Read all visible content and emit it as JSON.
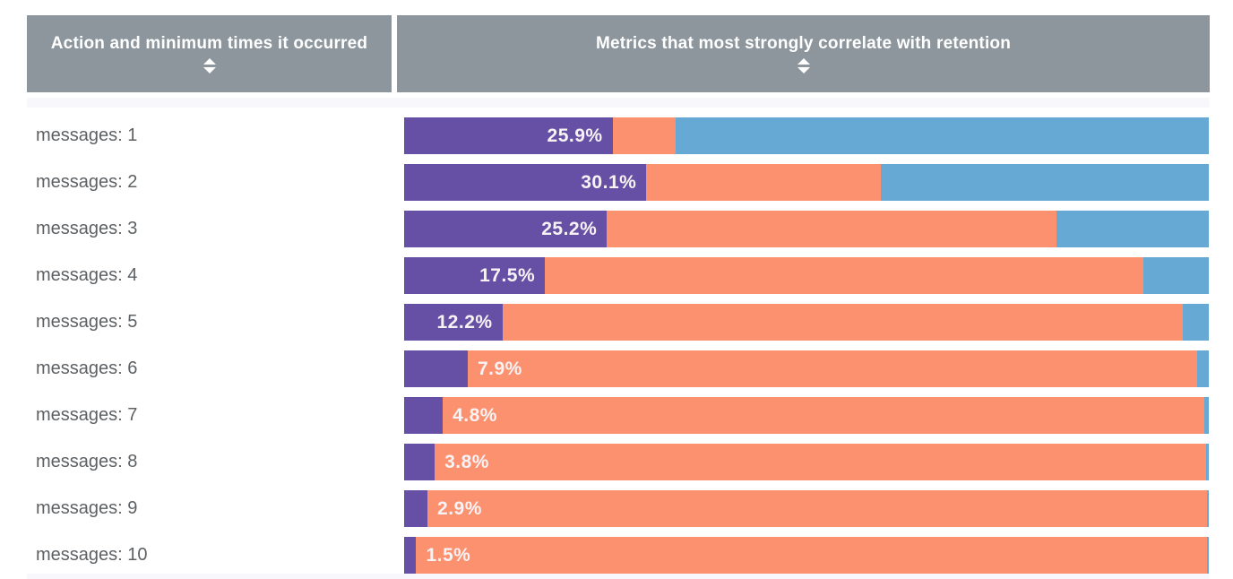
{
  "table": {
    "columns": [
      {
        "label": "Action and minimum times it occurred",
        "sortable": true,
        "sort_icon": "up-down-arrows"
      },
      {
        "label": "Metrics that most strongly correlate with retention",
        "sortable": true,
        "sort_icon": "up-down-arrows"
      }
    ],
    "rows": [
      {
        "action": "messages: 1",
        "value_label": "25.9%",
        "segments": {
          "purple": 25.9,
          "orange": 7.8,
          "blue": 66.3
        }
      },
      {
        "action": "messages: 2",
        "value_label": "30.1%",
        "segments": {
          "purple": 30.1,
          "orange": 29.1,
          "blue": 40.8
        }
      },
      {
        "action": "messages: 3",
        "value_label": "25.2%",
        "segments": {
          "purple": 25.2,
          "orange": 55.9,
          "blue": 18.9
        }
      },
      {
        "action": "messages: 4",
        "value_label": "17.5%",
        "segments": {
          "purple": 17.5,
          "orange": 74.4,
          "blue": 8.1
        }
      },
      {
        "action": "messages: 5",
        "value_label": "12.2%",
        "segments": {
          "purple": 12.2,
          "orange": 84.6,
          "blue": 3.2
        }
      },
      {
        "action": "messages: 6",
        "value_label": "7.9%",
        "segments": {
          "purple": 7.9,
          "orange": 90.6,
          "blue": 1.5
        }
      },
      {
        "action": "messages: 7",
        "value_label": "4.8%",
        "segments": {
          "purple": 4.8,
          "orange": 94.7,
          "blue": 0.5
        }
      },
      {
        "action": "messages: 8",
        "value_label": "3.8%",
        "segments": {
          "purple": 3.8,
          "orange": 95.9,
          "blue": 0.3
        }
      },
      {
        "action": "messages: 9",
        "value_label": "2.9%",
        "segments": {
          "purple": 2.9,
          "orange": 96.9,
          "blue": 0.2
        }
      },
      {
        "action": "messages: 10",
        "value_label": "1.5%",
        "segments": {
          "purple": 1.5,
          "orange": 98.3,
          "blue": 0.2
        }
      }
    ]
  },
  "colors": {
    "header_bg": "#8C969C",
    "header_text": "#FFFFFF",
    "purple": "#6650A5",
    "orange": "#FC9170",
    "blue": "#65A9D4",
    "row_label_text": "#5D6164",
    "pct_label_text": "#F7F3F4",
    "divider_strip": "#F8F8FC",
    "background": "#FFFFFF"
  },
  "chart_data": {
    "type": "bar",
    "subtype": "horizontal-stacked-100pct",
    "title": "Metrics that most strongly correlate with retention",
    "xlabel": "",
    "ylabel": "Action and minimum times it occurred",
    "xlim": [
      0,
      100
    ],
    "grid": false,
    "legend": "none",
    "categories": [
      "messages: 1",
      "messages: 2",
      "messages: 3",
      "messages: 4",
      "messages: 5",
      "messages: 6",
      "messages: 7",
      "messages: 8",
      "messages: 9",
      "messages: 10"
    ],
    "series": [
      {
        "name": "purple-segment",
        "color": "#6650A5",
        "values": [
          25.9,
          30.1,
          25.2,
          17.5,
          12.2,
          7.9,
          4.8,
          3.8,
          2.9,
          1.5
        ]
      },
      {
        "name": "orange-segment",
        "color": "#FC9170",
        "values": [
          7.8,
          29.1,
          55.9,
          74.4,
          84.6,
          90.6,
          94.7,
          95.9,
          96.9,
          98.3
        ]
      },
      {
        "name": "blue-segment",
        "color": "#65A9D4",
        "values": [
          66.3,
          40.8,
          18.9,
          8.1,
          3.2,
          1.5,
          0.5,
          0.3,
          0.2,
          0.2
        ]
      }
    ],
    "data_labels": [
      "25.9%",
      "30.1%",
      "25.2%",
      "17.5%",
      "12.2%",
      "7.9%",
      "4.8%",
      "3.8%",
      "2.9%",
      "1.5%"
    ],
    "data_label_note": "only the purple (first) segment value is labeled on each bar"
  }
}
